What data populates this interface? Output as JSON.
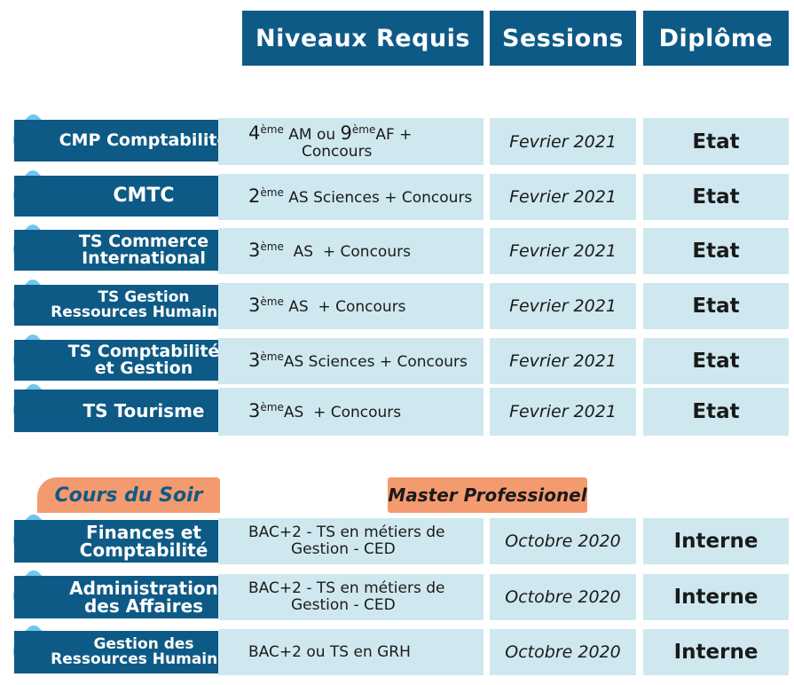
{
  "header": {
    "niveaux": "Niveaux Requis",
    "sessions": "Sessions",
    "diplome": "Diplôme"
  },
  "formations": [
    {
      "name": [
        "CMP Comptabilité"
      ],
      "req_html": "<span class=\"big\">4</span><sup>ème</sup> AM ou <span class=\"big\">9</span><sup>ème</sup>AF +<br><span style=\"padding-left:60px\">Concours</span>",
      "session": "Fevrier 2021",
      "diplome": "Etat"
    },
    {
      "name": [
        "CMTC"
      ],
      "req_html": "<span class=\"big\">2</span><sup>ème</sup> AS Sciences + Concours",
      "session": "Fevrier 2021",
      "diplome": "Etat"
    },
    {
      "name": [
        "TS Commerce",
        "International"
      ],
      "req_html": "<span class=\"big\">3</span><sup>ème</sup> &nbsp;AS &nbsp;+ Concours",
      "session": "Fevrier 2021",
      "diplome": "Etat"
    },
    {
      "name": [
        "TS Gestion",
        "Ressources Humaines"
      ],
      "req_html": "<span class=\"big\">3</span><sup>ème</sup> AS &nbsp;+ Concours",
      "session": "Fevrier 2021",
      "diplome": "Etat"
    },
    {
      "name": [
        "TS Comptabilité",
        "et Gestion"
      ],
      "req_html": "<span class=\"big\">3</span><sup>ème</sup>AS Sciences + Concours",
      "session": "Fevrier 2021",
      "diplome": "Etat"
    },
    {
      "name": [
        "TS  Tourisme"
      ],
      "req_html": "<span class=\"big\">3</span><sup>ème</sup>AS &nbsp;+ Concours",
      "session": "Fevrier 2021",
      "diplome": "Etat"
    }
  ],
  "tags": {
    "cours_du_soir": "Cours du Soir",
    "master": "Master Professionel"
  },
  "masters": [
    {
      "name": [
        "Finances et",
        "Comptabilité"
      ],
      "req": [
        "BAC+2 - TS en métiers de",
        "Gestion - CED"
      ],
      "session": "Octobre 2020",
      "diplome": "Interne"
    },
    {
      "name": [
        "Administration",
        "des Affaires"
      ],
      "req": [
        "BAC+2 - TS en métiers de",
        "Gestion - CED"
      ],
      "session": "Octobre 2020",
      "diplome": "Interne"
    },
    {
      "name": [
        "Gestion des",
        "Ressources Humaines"
      ],
      "req": [
        "BAC+2 ou TS en GRH"
      ],
      "session": "Octobre 2020",
      "diplome": "Interne"
    }
  ],
  "colors": {
    "header_blue": "#0e5a86",
    "bubble_blue": "#6fc7ed",
    "cell_bg": "#cfe8ef",
    "tag_orange": "#f49a6f"
  }
}
